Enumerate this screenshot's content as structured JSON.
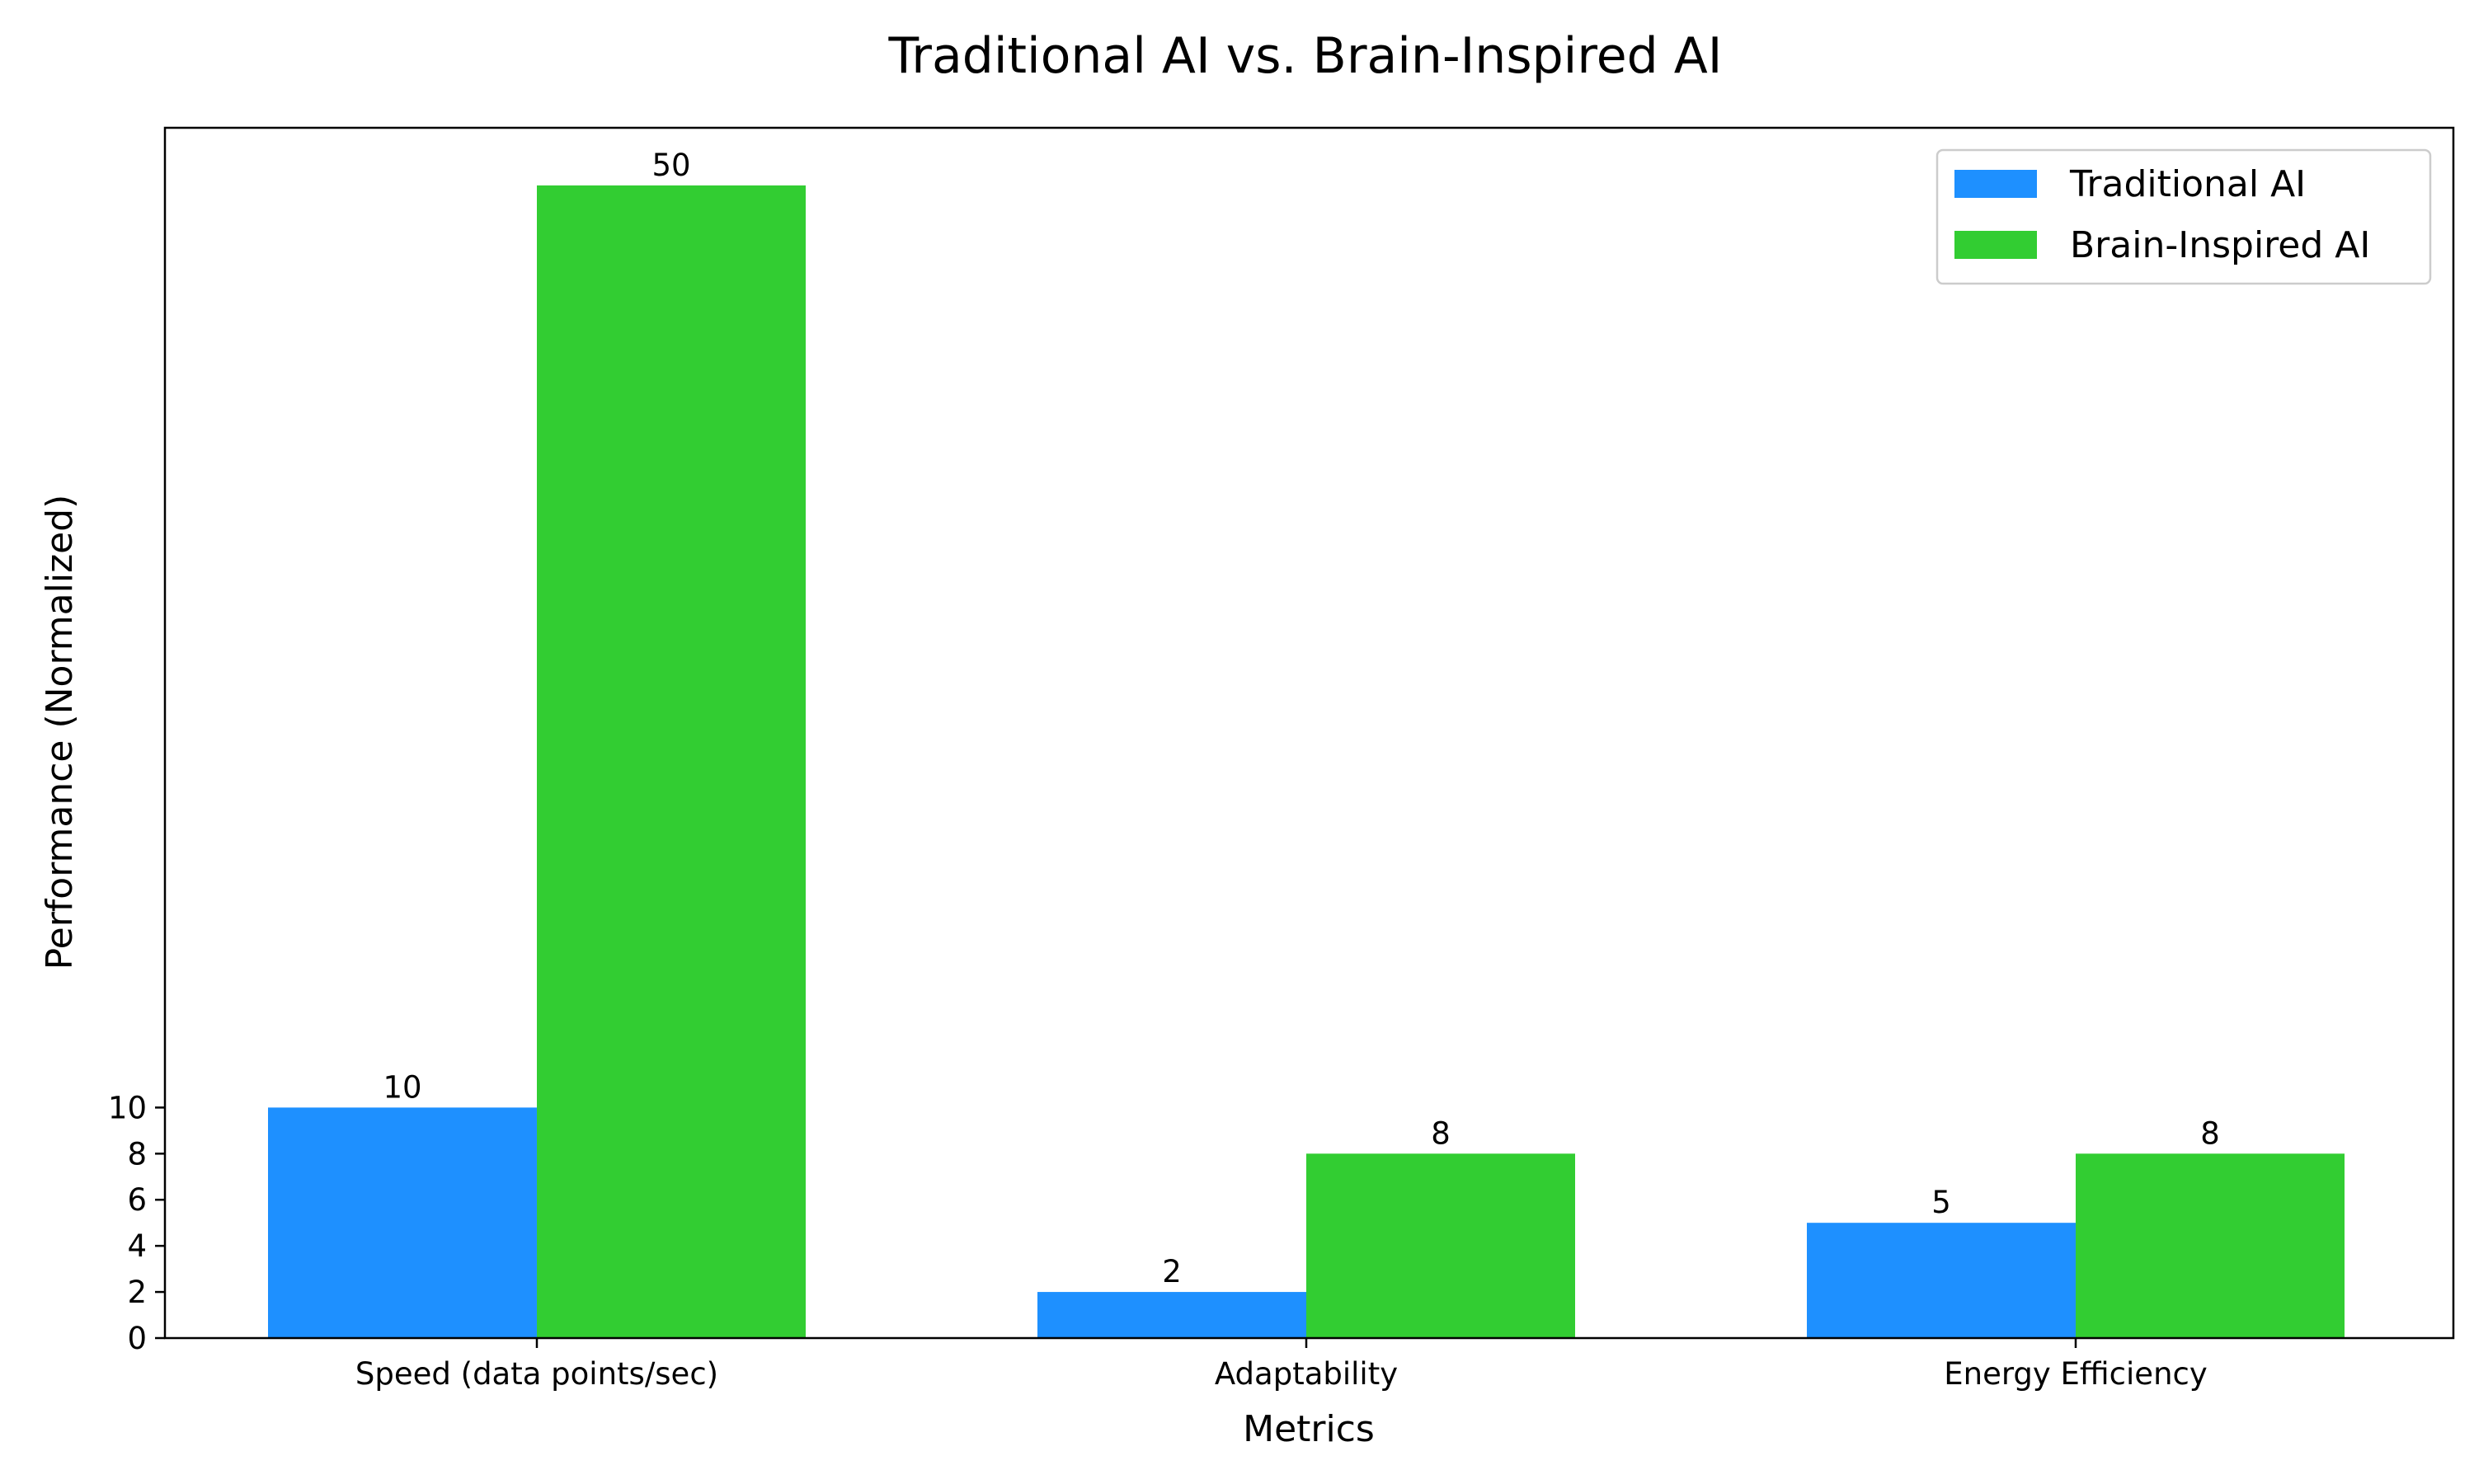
{
  "chart_data": {
    "type": "bar",
    "title": "Traditional AI vs. Brain-Inspired AI",
    "xlabel": "Metrics",
    "ylabel": "Performance (Normalized)",
    "categories": [
      "Speed (data points/sec)",
      "Adaptability",
      "Energy Efficiency"
    ],
    "series": [
      {
        "name": "Traditional AI",
        "color": "#1e90ff",
        "values": [
          10,
          2,
          5
        ]
      },
      {
        "name": "Brain-Inspired AI",
        "color": "#32cd32",
        "values": [
          50,
          8,
          8
        ]
      }
    ],
    "yticks": [
      0,
      2,
      4,
      6,
      8,
      10
    ],
    "ylim": [
      0,
      52.5
    ],
    "grid": false,
    "legend_position": "top-right",
    "data_labels": true
  }
}
